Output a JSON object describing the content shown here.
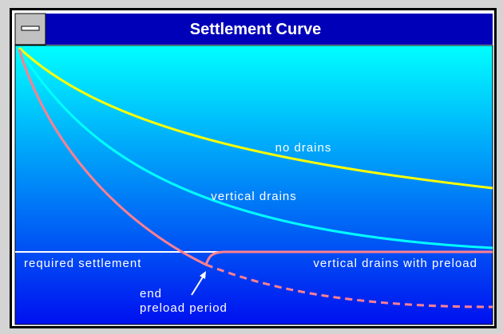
{
  "window": {
    "title": "Settlement Curve"
  },
  "labels": {
    "no_drains": "no drains",
    "vertical_drains": "vertical drains",
    "required_settlement": "required settlement",
    "with_preload": "vertical drains with preload",
    "end": "end",
    "preload_period": "preload period"
  }
}
